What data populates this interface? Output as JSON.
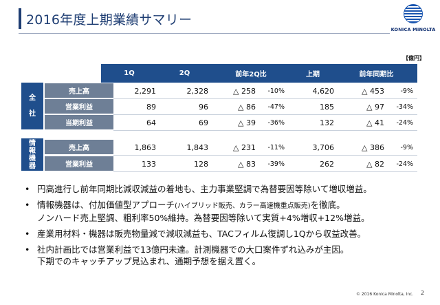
{
  "header": {
    "title": "2016年度上期業績サマリー",
    "logo_text": "KONICA MINOLTA"
  },
  "unit": "【億円】",
  "table": {
    "columns": [
      "1Q",
      "2Q",
      "前年2Q比",
      "上期",
      "前年同期比"
    ],
    "groups": [
      {
        "label": "全\n社",
        "label_chars": [
          "全",
          "社"
        ],
        "rows": [
          {
            "label": "売上高",
            "q1": "2,291",
            "q2": "2,328",
            "yoy2q_amt": "△ 258",
            "yoy2q_pct": "-10%",
            "h1": "4,620",
            "yoyh1_amt": "△ 453",
            "yoyh1_pct": "-9%"
          },
          {
            "label": "営業利益",
            "q1": "89",
            "q2": "96",
            "yoy2q_amt": "△ 86",
            "yoy2q_pct": "-47%",
            "h1": "185",
            "yoyh1_amt": "△ 97",
            "yoyh1_pct": "-34%"
          },
          {
            "label": "当期利益",
            "q1": "64",
            "q2": "69",
            "yoy2q_amt": "△ 39",
            "yoy2q_pct": "-36%",
            "h1": "132",
            "yoyh1_amt": "△ 41",
            "yoyh1_pct": "-24%"
          }
        ]
      },
      {
        "label": "情報機器",
        "label_chars": [
          "情",
          "報",
          "機",
          "器"
        ],
        "rows": [
          {
            "label": "売上高",
            "q1": "1,863",
            "q2": "1,843",
            "yoy2q_amt": "△ 231",
            "yoy2q_pct": "-11%",
            "h1": "3,706",
            "yoyh1_amt": "△ 386",
            "yoyh1_pct": "-9%"
          },
          {
            "label": "営業利益",
            "q1": "133",
            "q2": "128",
            "yoy2q_amt": "△ 83",
            "yoy2q_pct": "-39%",
            "h1": "262",
            "yoyh1_amt": "△ 82",
            "yoyh1_pct": "-24%"
          }
        ]
      }
    ]
  },
  "bullets": [
    {
      "lines": [
        "円高進行し前年同期比減収減益の着地も、主力事業堅調で為替要因等除いて増収増益。"
      ]
    },
    {
      "line1_a": "情報機器は、付加価値型アプローチ",
      "line1_b": "(ハイブリッド販売、カラー高速機重点販売)",
      "line1_c": "を徹底。",
      "line2": "ノンハード売上堅調、粗利率50%維持。為替要因等除いて実質+4%増収+12%増益。"
    },
    {
      "lines": [
        "産業用材料・機器は販売物量減で減収減益も、TACフィルム復調し1Qから収益改善。"
      ]
    },
    {
      "lines": [
        "社内計画比では営業利益で13億円未達。計測機器での大口案件ずれ込みが主因。",
        "下期でのキャッチアップ見込まれ、通期予想を据え置く。"
      ]
    }
  ],
  "footer": {
    "copyright": "© 2016 Konica Minolta, Inc.",
    "page": "2"
  },
  "colors": {
    "header_blue": "#1f4e8c",
    "row_label_gray": "#6e7f96",
    "title_blue": "#1f3e73"
  }
}
